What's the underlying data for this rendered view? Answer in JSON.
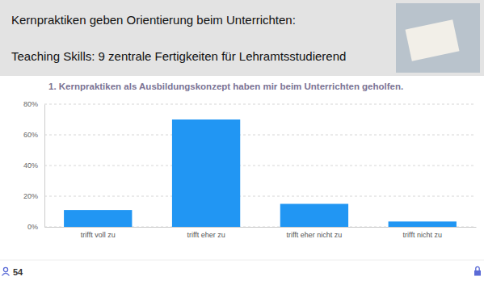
{
  "header": {
    "title": "Kernpraktiken geben Orientierung beim Unterrichten:",
    "subtitle": "Teaching Skills: 9 zentrale Fertigkeiten für Lehramtsstudierend"
  },
  "chart_data": {
    "type": "bar",
    "title": "1. Kernpraktiken als Ausbildungskonzept haben mir beim Unterrichten geholfen.",
    "categories": [
      "trifft voll zu",
      "trifft eher zu",
      "trifft eher nicht zu",
      "trifft nicht zu"
    ],
    "values": [
      11,
      70,
      15,
      3.5
    ],
    "color": "#2196f3",
    "ylim": [
      0,
      80
    ],
    "yticks": [
      {
        "value": 0,
        "label": "0%"
      },
      {
        "value": 20,
        "label": "20%"
      },
      {
        "value": 40,
        "label": "40%"
      },
      {
        "value": 60,
        "label": "60%"
      },
      {
        "value": 80,
        "label": "80%"
      }
    ],
    "grid": true
  },
  "footer": {
    "respondents": 54
  }
}
